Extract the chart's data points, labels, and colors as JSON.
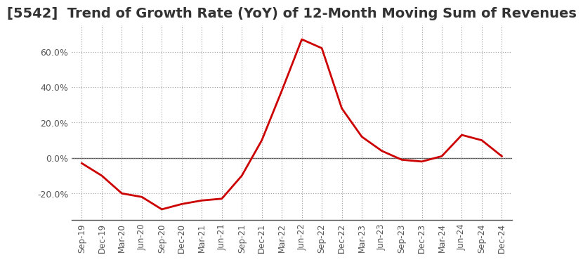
{
  "title": "[5542]  Trend of Growth Rate (YoY) of 12-Month Moving Sum of Revenues",
  "x_labels": [
    "Sep-19",
    "Dec-19",
    "Mar-20",
    "Jun-20",
    "Sep-20",
    "Dec-20",
    "Mar-21",
    "Jun-21",
    "Sep-21",
    "Dec-21",
    "Mar-22",
    "Jun-22",
    "Sep-22",
    "Dec-22",
    "Mar-23",
    "Jun-23",
    "Sep-23",
    "Dec-23",
    "Mar-24",
    "Jun-24",
    "Sep-24",
    "Dec-24"
  ],
  "y_values": [
    -0.03,
    -0.1,
    -0.2,
    -0.22,
    -0.29,
    -0.26,
    -0.24,
    -0.23,
    -0.1,
    0.1,
    0.38,
    0.67,
    0.62,
    0.28,
    0.12,
    0.04,
    -0.01,
    -0.02,
    0.01,
    0.13,
    0.1,
    0.01
  ],
  "line_color": "#cc0000",
  "line_width": 2.0,
  "background_color": "#ffffff",
  "grid_color": "#999999",
  "title_fontsize": 14,
  "ylim": [
    -0.35,
    0.75
  ],
  "yticks": [
    -0.2,
    0.0,
    0.2,
    0.4,
    0.6
  ],
  "zero_line_color": "#555555",
  "tick_label_color": "#555555",
  "spine_color": "#555555"
}
